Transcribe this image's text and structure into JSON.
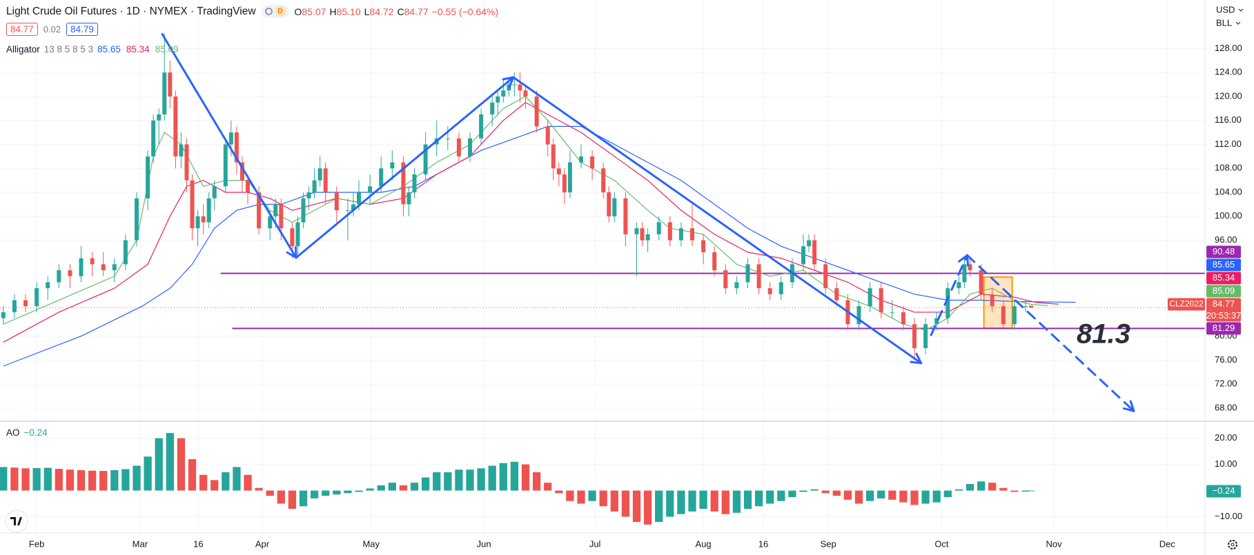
{
  "chart_data": [
    {
      "type": "candlestick",
      "title": "Light Crude Oil Futures · 1D · NYMEX · TradingView",
      "data_status": "D",
      "ohlc_legend": [
        {
          "key": "O",
          "text": "85.07"
        },
        {
          "key": "H",
          "text": "85.10"
        },
        {
          "key": "L",
          "text": "84.72"
        },
        {
          "key": "C",
          "text": "84.77"
        }
      ],
      "change_text": "−0.55 (−0.64%)",
      "bid": 84.77,
      "spread": 0.02,
      "ask": 84.79,
      "currency": "USD",
      "unit": "BLL",
      "symbol": "CLZ2022",
      "countdown": "20:53:37",
      "up_color": "#26a69a",
      "down_color": "#ef5350",
      "x": [
        0,
        2,
        4,
        6,
        8,
        10,
        12,
        14,
        16,
        18,
        20,
        22,
        24,
        26,
        27,
        28,
        29,
        30,
        31,
        32,
        33,
        34,
        35,
        36,
        37,
        38,
        40,
        41,
        42,
        43,
        44,
        46,
        48,
        49,
        50,
        52,
        53,
        54,
        55,
        56,
        57,
        58,
        60,
        62,
        63,
        64,
        66,
        68,
        70,
        72,
        73,
        74,
        76,
        78,
        80,
        82,
        84,
        86,
        88,
        89,
        90,
        91,
        92,
        93,
        94,
        96,
        98,
        99,
        100,
        101,
        102,
        104,
        106,
        108,
        109,
        110,
        112,
        114,
        115,
        116,
        118,
        120,
        122,
        124,
        126,
        128,
        130,
        132,
        134,
        136,
        138,
        140,
        142,
        144,
        145,
        146,
        148,
        150,
        152,
        154,
        156,
        158,
        160,
        162,
        164,
        166,
        168,
        170,
        172,
        173,
        174,
        176,
        178,
        180,
        182,
        184,
        185
      ],
      "open": [
        83,
        84,
        86,
        85,
        88,
        89,
        91,
        90,
        93,
        92,
        91,
        92,
        96,
        103,
        110,
        116,
        117,
        124,
        120,
        110,
        112,
        106,
        98,
        100,
        99,
        103,
        105,
        112,
        114,
        109,
        106,
        104,
        98,
        100,
        102,
        98,
        95,
        99,
        103,
        104,
        106,
        108,
        104,
        101,
        101,
        102,
        104,
        105,
        108,
        109,
        102,
        104,
        107,
        112,
        113,
        113,
        110,
        113,
        117,
        119,
        120,
        121,
        122,
        122,
        121,
        120,
        115,
        112,
        108,
        107,
        104,
        109,
        110,
        108,
        104,
        100,
        103,
        97,
        98,
        96,
        97,
        99,
        96,
        98,
        96,
        94,
        91,
        88,
        89,
        92,
        88,
        87,
        89,
        92,
        95,
        96,
        92,
        88,
        86,
        82,
        85,
        88,
        84,
        84,
        82,
        78,
        82,
        83,
        88,
        89,
        92,
        91,
        87,
        85,
        82,
        85,
        85.07
      ],
      "high": [
        85,
        87,
        87,
        89,
        90,
        92,
        92,
        95,
        94,
        94,
        93,
        97,
        104,
        111,
        117,
        118,
        130.5,
        126,
        121,
        114,
        113,
        107,
        101,
        102,
        104,
        106,
        113,
        116,
        115,
        110,
        107,
        105,
        101,
        103,
        103,
        99,
        100,
        104,
        105,
        108,
        110,
        109,
        105,
        103,
        104,
        106,
        107,
        110,
        111,
        110,
        105,
        108,
        114,
        116,
        115,
        114,
        114,
        118,
        120,
        121,
        123,
        123,
        124,
        124,
        122,
        121,
        116,
        113,
        109,
        108,
        111,
        112,
        111,
        109,
        105,
        104,
        104,
        99,
        99,
        98,
        100,
        100,
        99,
        102,
        97,
        95,
        92,
        90,
        93,
        93,
        89,
        90,
        93,
        97,
        97,
        97,
        93,
        89,
        87,
        86,
        89,
        89,
        86,
        85,
        83,
        83,
        84,
        89,
        90,
        93,
        93,
        92,
        88,
        86,
        86,
        86,
        85.1
      ],
      "low": [
        82,
        83,
        84,
        84,
        86,
        88,
        88,
        89,
        90,
        90,
        89,
        91,
        95,
        101,
        109,
        112,
        116,
        118,
        108,
        108,
        104,
        96,
        95,
        97,
        98,
        101,
        104,
        110,
        107,
        104,
        102,
        97,
        96,
        98,
        96,
        93,
        93,
        98,
        101,
        103,
        105,
        102,
        99,
        96,
        100,
        101,
        102,
        104,
        106,
        100,
        100,
        103,
        106,
        110,
        111,
        109,
        109,
        112,
        115,
        117,
        119,
        120,
        120,
        119,
        118,
        114,
        110,
        106,
        105,
        102,
        103,
        108,
        106,
        103,
        99,
        99,
        95,
        90,
        95,
        94,
        96,
        95,
        95,
        95,
        92,
        90,
        87,
        87,
        88,
        87,
        86,
        86,
        88,
        91,
        94,
        91,
        87,
        85,
        81,
        81,
        84,
        83,
        83,
        81,
        76,
        77,
        81,
        82,
        87,
        88,
        90,
        86,
        84,
        81,
        81,
        84,
        84.72
      ],
      "close": [
        84,
        86,
        85,
        88,
        89,
        91,
        90,
        93,
        92,
        91,
        92,
        96,
        103,
        110,
        116,
        117,
        124,
        120,
        110,
        112,
        106,
        98,
        100,
        99,
        103,
        105,
        112,
        114,
        109,
        106,
        104,
        98,
        100,
        102,
        98,
        95,
        99,
        103,
        104,
        106,
        108,
        104,
        101,
        101,
        102,
        104,
        105,
        108,
        109,
        102,
        104,
        107,
        112,
        113,
        113,
        110,
        113,
        117,
        119,
        120,
        121,
        122,
        122,
        121,
        120,
        115,
        112,
        108,
        107,
        104,
        109,
        110,
        108,
        104,
        100,
        103,
        97,
        98,
        96,
        97,
        99,
        96,
        98,
        96,
        94,
        91,
        88,
        89,
        92,
        88,
        87,
        89,
        92,
        95,
        96,
        92,
        88,
        86,
        82,
        85,
        88,
        84,
        84,
        82,
        78,
        82,
        83,
        88,
        89,
        92,
        91,
        87,
        85,
        82,
        85,
        85,
        84.77
      ],
      "xlim": [
        -0.6,
        216.3
      ],
      "ylim": [
        65.8,
        136.1
      ],
      "yticks": [
        {
          "value": 128,
          "label": "128.00"
        },
        {
          "value": 124,
          "label": "124.00"
        },
        {
          "value": 120,
          "label": "120.00"
        },
        {
          "value": 116,
          "label": "116.00"
        },
        {
          "value": 112,
          "label": "112.00"
        },
        {
          "value": 108,
          "label": "108.00"
        },
        {
          "value": 104,
          "label": "104.00"
        },
        {
          "value": 100,
          "label": "100.00"
        },
        {
          "value": 96,
          "label": "96.00"
        },
        {
          "value": 80,
          "label": "80.00"
        },
        {
          "value": 76,
          "label": "76.00"
        },
        {
          "value": 72,
          "label": "72.00"
        },
        {
          "value": 68,
          "label": "68.00"
        }
      ],
      "xticks": [
        {
          "value": 6,
          "label": "Feb"
        },
        {
          "value": 24.6,
          "label": "Mar"
        },
        {
          "value": 35.1,
          "label": "16"
        },
        {
          "value": 46.6,
          "label": "Apr"
        },
        {
          "value": 66.2,
          "label": "May"
        },
        {
          "value": 86.5,
          "label": "Jun"
        },
        {
          "value": 106.5,
          "label": "Jul"
        },
        {
          "value": 126,
          "label": "Aug"
        },
        {
          "value": 136.8,
          "label": "16"
        },
        {
          "value": 148.5,
          "label": "Sep"
        },
        {
          "value": 168.9,
          "label": "Oct"
        },
        {
          "value": 189.1,
          "label": "Nov"
        },
        {
          "value": 209.5,
          "label": "Dec"
        }
      ],
      "grid": true,
      "indicator": {
        "name": "Alligator",
        "params": "13 8 5 8 5 3",
        "lines": [
          {
            "color": "#2962ff",
            "x": [
              0,
              14,
              25,
              30,
              34,
              38,
              42,
              46,
              50,
              56,
              62,
              68,
              74,
              80,
              86,
              92,
              98,
              104,
              110,
              116,
              122,
              128,
              134,
              140,
              146,
              152,
              158,
              164,
              170,
              176,
              182,
              188,
              193
            ],
            "values": [
              75,
              80,
              85,
              88,
              92,
              98,
              101,
              102,
              102,
              104,
              104,
              104,
              105,
              108,
              111,
              113,
              115,
              115,
              112,
              109,
              106,
              102,
              98,
              95,
              93,
              91,
              89,
              87,
              86,
              86,
              85.8,
              85.7,
              85.65
            ]
          },
          {
            "color": "#e91e63",
            "x": [
              0,
              10,
              20,
              26,
              30,
              33,
              36,
              40,
              44,
              48,
              52,
              56,
              60,
              66,
              72,
              78,
              84,
              90,
              94,
              98,
              104,
              110,
              116,
              122,
              128,
              134,
              140,
              146,
              152,
              158,
              164,
              170,
              176,
              182,
              186,
              190
            ],
            "values": [
              79,
              84,
              88,
              92,
              100,
              105,
              106,
              104,
              104,
              103,
              101,
              102,
              103,
              102,
              103,
              107,
              110,
              116,
              119,
              117,
              114,
              110,
              106,
              101,
              97,
              94,
              93,
              91,
              89,
              86,
              84,
              84,
              87,
              86.5,
              85.6,
              85.34
            ]
          },
          {
            "color": "#66bb6a",
            "x": [
              0,
              10,
              20,
              24,
              27,
              29,
              32,
              36,
              40,
              44,
              48,
              52,
              56,
              60,
              66,
              72,
              78,
              84,
              90,
              94,
              98,
              104,
              110,
              116,
              120,
              126,
              132,
              138,
              144,
              150,
              156,
              162,
              166,
              170,
              174,
              178,
              182,
              185,
              188
            ],
            "values": [
              82,
              86,
              90,
              96,
              110,
              114,
              112,
              105,
              106,
              106,
              101,
              99,
              101,
              103,
              102,
              105,
              109,
              112,
              118,
              120,
              116,
              109,
              106,
              101,
              98,
              97,
              92,
              90,
              91,
              87,
              85,
              82,
              81,
              83,
              87,
              88,
              86,
              85.3,
              85.09
            ]
          }
        ]
      },
      "hlines": [
        {
          "value": 90.48,
          "from": 39.1,
          "color": "#9c27b0"
        },
        {
          "value": 81.29,
          "from": 41.2,
          "color": "#9c27b0"
        }
      ],
      "trendlines": [
        {
          "points": [
            [
              28.6,
              130.4
            ],
            [
              52.7,
              93.1
            ]
          ],
          "dashed": false
        },
        {
          "points": [
            [
              52.7,
              93.1
            ],
            [
              91.8,
              123.2
            ]
          ],
          "dashed": false
        },
        {
          "points": [
            [
              91.8,
              123.2
            ],
            [
              165.2,
              75.5
            ]
          ],
          "dashed": false
        },
        {
          "points": [
            [
              167,
              80.2
            ],
            [
              173.5,
              93.5
            ]
          ],
          "dashed": true
        },
        {
          "points": [
            [
              173.5,
              93.5
            ],
            [
              203.5,
              67.5
            ]
          ],
          "dashed": true
        }
      ],
      "trend_color": "#2962ff",
      "range_box": {
        "x": [
          176.5,
          181.6
        ],
        "y": [
          81.33,
          89.87
        ],
        "color": "#ff9800"
      },
      "annotation": "81.3"
    },
    {
      "type": "bar",
      "name": "AO",
      "x": [
        0,
        2,
        4,
        6,
        8,
        10,
        12,
        14,
        16,
        18,
        20,
        22,
        24,
        26,
        28,
        30,
        32,
        34,
        36,
        38,
        40,
        42,
        44,
        46,
        48,
        50,
        52,
        54,
        56,
        58,
        60,
        62,
        64,
        66,
        68,
        70,
        72,
        74,
        76,
        78,
        80,
        82,
        84,
        86,
        88,
        90,
        92,
        94,
        96,
        98,
        100,
        102,
        104,
        106,
        108,
        110,
        112,
        114,
        116,
        118,
        120,
        122,
        124,
        126,
        128,
        130,
        132,
        134,
        136,
        138,
        140,
        142,
        144,
        146,
        148,
        150,
        152,
        154,
        156,
        158,
        160,
        162,
        164,
        166,
        168,
        170,
        172,
        174,
        176,
        178,
        180,
        182,
        184,
        185
      ],
      "values": [
        9,
        8.8,
        8.5,
        8.6,
        8.7,
        8.3,
        8,
        7.8,
        7.6,
        7.5,
        7.8,
        8.2,
        9.5,
        13,
        20,
        22,
        20,
        12,
        6,
        4,
        7,
        9,
        6,
        1,
        -2,
        -5,
        -7,
        -6,
        -3,
        -2,
        -1.5,
        -1,
        -0.5,
        0.8,
        2,
        3,
        2,
        3,
        5,
        7,
        7,
        8,
        8,
        8.5,
        9.5,
        10.5,
        11,
        10,
        7,
        3,
        -1,
        -4,
        -5,
        -4,
        -6,
        -8,
        -10,
        -12,
        -13,
        -12,
        -10,
        -9,
        -8,
        -7,
        -8,
        -9,
        -8.5,
        -7,
        -6,
        -5,
        -4,
        -2.5,
        -0.5,
        0.5,
        -1,
        -2,
        -3.5,
        -5,
        -4,
        -3,
        -3.5,
        -4.5,
        -5.5,
        -5,
        -4.5,
        -2.5,
        0.5,
        2.5,
        3.5,
        3,
        1,
        -0.5,
        -0.4,
        -0.24
      ],
      "last_label": "−0.24",
      "up_color": "#26a69a",
      "down_color": "#ef5350",
      "xlim": [
        -0.6,
        216.3
      ],
      "ylim": [
        -16.2,
        26.5
      ],
      "yticks": [
        {
          "value": 20,
          "label": "20.00"
        },
        {
          "value": 10,
          "label": "10.00"
        },
        {
          "value": -10,
          "label": "−10.00"
        }
      ],
      "grid": true
    }
  ]
}
